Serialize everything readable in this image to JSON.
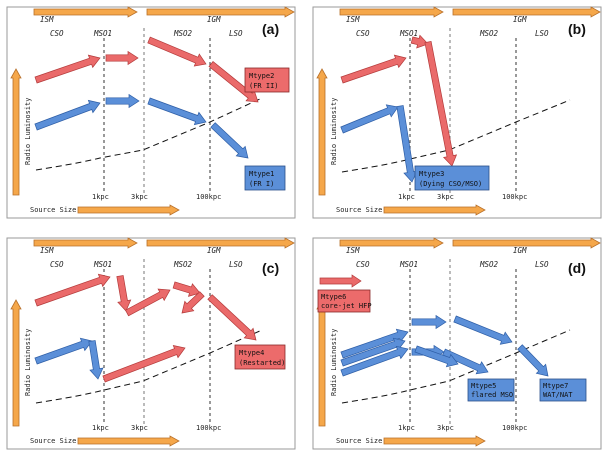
{
  "figure": {
    "regions": [
      "ISM",
      "IGM"
    ],
    "classes": [
      "CSO",
      "MSO1",
      "MSO2",
      "LSO"
    ],
    "sizes": [
      "1kpc",
      "3kpc",
      "100kpc"
    ],
    "xlabel": "Source Size",
    "ylabel": "Radio Luminosity",
    "panels": [
      {
        "letter": "(a)",
        "labels": [
          {
            "color": "red",
            "line1": "Mtype2",
            "line2": "(FR II)"
          },
          {
            "color": "blue",
            "line1": "Mtype1",
            "line2": "(FR I)"
          }
        ]
      },
      {
        "letter": "(b)",
        "labels": [
          {
            "color": "blue",
            "line1": "Mtype3",
            "line2": "(Dying CSO/MSO)"
          }
        ]
      },
      {
        "letter": "(c)",
        "labels": [
          {
            "color": "red",
            "line1": "Mtype4",
            "line2": "(Restarted)"
          }
        ]
      },
      {
        "letter": "(d)",
        "labels": [
          {
            "color": "red",
            "line1": "Mtype6",
            "line2": "core-jet HFP"
          },
          {
            "color": "blue",
            "line1": "Mtype5",
            "line2": "flared MSO"
          },
          {
            "color": "blue",
            "line1": "Mtype7",
            "line2": "WAT/NAT"
          }
        ]
      }
    ]
  },
  "colors": {
    "red": "#ea6a6a",
    "blue": "#5b8fd8",
    "orange": "#f5a74a"
  }
}
